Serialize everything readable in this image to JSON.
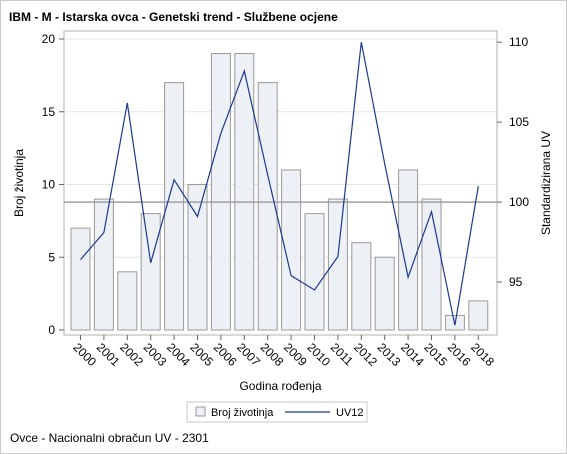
{
  "title": "IBM - M - Istarska ovca - Genetski trend - Službene ocjene",
  "footnote": "Ovce - Nacionalni obračun UV - 2301",
  "colors": {
    "bar_fill": "#edf0f5",
    "bar_stroke": "#9a9a9a",
    "line": "#1a3a8f",
    "ref_line": "#a0a0a0",
    "grid": "#e6e6e6",
    "frame": "#b0b0b0"
  },
  "chart_data": {
    "type": "bar",
    "categories": [
      "2000",
      "2001",
      "2002",
      "2003",
      "2004",
      "2005",
      "2006",
      "2007",
      "2008",
      "2009",
      "2010",
      "2011",
      "2012",
      "2013",
      "2014",
      "2015",
      "2016",
      "2018"
    ],
    "series": [
      {
        "name": "Broj životinja",
        "type": "bar",
        "axis": "left",
        "values": [
          7,
          9,
          4,
          8,
          17,
          10,
          19,
          19,
          17,
          11,
          8,
          9,
          6,
          5,
          11,
          9,
          1,
          2
        ]
      },
      {
        "name": "UV12",
        "type": "line",
        "axis": "right",
        "values": [
          96.4,
          98.1,
          106.2,
          96.2,
          101.4,
          99.1,
          104.3,
          108.2,
          101.7,
          95.4,
          94.5,
          96.6,
          110.0,
          102.4,
          95.3,
          99.4,
          92.3,
          101.0
        ]
      }
    ],
    "xlabel": "Godina rođenja",
    "ylabel": "Broj životinja",
    "y2label": "Standardizirana UV",
    "ylim": [
      0,
      20
    ],
    "yticks": [
      0,
      5,
      10,
      15,
      20
    ],
    "y2lim": [
      92,
      110.2
    ],
    "y2ticks": [
      95,
      100,
      105,
      110
    ],
    "reference_line_y2": 100,
    "legend": [
      "Broj životinja",
      "UV12"
    ],
    "legend_position": "bottom",
    "grid": true
  }
}
